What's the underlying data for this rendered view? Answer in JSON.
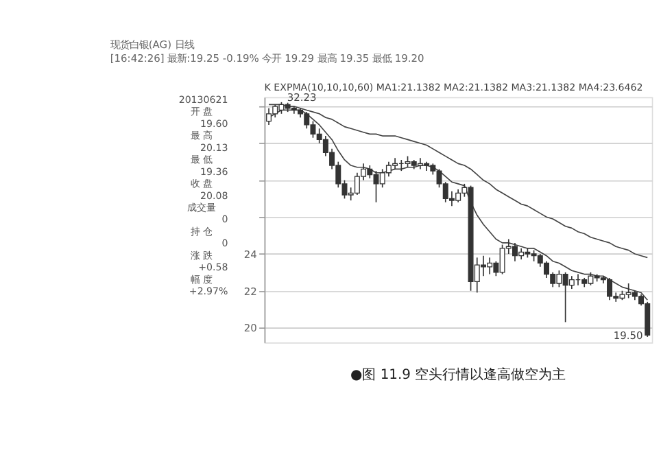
{
  "chart_data": {
    "type": "candlestick",
    "title": "现货白银(AG) 日线",
    "subtitle": "[16:42:26] 最新:19.25 -0.19% 今开 19.29 最高 19.35 最低 19.20",
    "color": "#333333",
    "categories": [
      null,
      null,
      null,
      null,
      null,
      null,
      null,
      null,
      null,
      null,
      null,
      null,
      null,
      null,
      null,
      null,
      null,
      null,
      null,
      null,
      null,
      null,
      null,
      null,
      null,
      null,
      null,
      null,
      null,
      null,
      null,
      null,
      null,
      null,
      null,
      null,
      null,
      null,
      null,
      null,
      null,
      null,
      null,
      null,
      null,
      null,
      null,
      null,
      null,
      null,
      null,
      null,
      null,
      null,
      null,
      null,
      null,
      null,
      null,
      null,
      null
    ],
    "ohlc": [
      [
        31.2,
        31.9,
        31.0,
        31.6
      ],
      [
        31.6,
        32.1,
        31.4,
        32.0
      ],
      [
        31.8,
        32.23,
        31.6,
        32.1
      ],
      [
        32.1,
        32.2,
        31.7,
        31.9
      ],
      [
        31.9,
        32.0,
        31.6,
        31.8
      ],
      [
        31.8,
        31.9,
        31.4,
        31.6
      ],
      [
        31.6,
        31.7,
        30.8,
        31.0
      ],
      [
        31.0,
        31.2,
        30.3,
        30.5
      ],
      [
        30.5,
        30.8,
        30.0,
        30.2
      ],
      [
        30.2,
        30.4,
        29.3,
        29.5
      ],
      [
        29.5,
        29.7,
        28.6,
        28.8
      ],
      [
        28.8,
        29.0,
        27.6,
        27.8
      ],
      [
        27.8,
        28.0,
        27.0,
        27.2
      ],
      [
        27.2,
        27.6,
        26.9,
        27.3
      ],
      [
        27.3,
        28.4,
        27.2,
        28.2
      ],
      [
        28.2,
        28.9,
        28.0,
        28.6
      ],
      [
        28.6,
        28.8,
        28.1,
        28.3
      ],
      [
        28.3,
        28.5,
        26.8,
        27.8
      ],
      [
        27.8,
        28.6,
        27.6,
        28.4
      ],
      [
        28.4,
        29.0,
        28.2,
        28.8
      ],
      [
        28.8,
        29.2,
        28.6,
        28.9
      ],
      [
        28.9,
        29.1,
        28.5,
        28.9
      ],
      [
        28.9,
        29.3,
        28.7,
        29.0
      ],
      [
        29.0,
        29.1,
        28.6,
        28.8
      ],
      [
        28.8,
        29.2,
        28.6,
        28.9
      ],
      [
        28.9,
        29.0,
        28.5,
        28.8
      ],
      [
        28.8,
        28.9,
        28.3,
        28.5
      ],
      [
        28.5,
        28.6,
        27.6,
        27.8
      ],
      [
        27.8,
        27.9,
        26.8,
        27.0
      ],
      [
        27.0,
        27.4,
        26.6,
        26.9
      ],
      [
        26.9,
        27.5,
        26.8,
        27.3
      ],
      [
        27.3,
        27.8,
        27.1,
        27.6
      ],
      [
        27.6,
        27.7,
        22.0,
        22.5
      ],
      [
        22.5,
        23.8,
        21.9,
        23.4
      ],
      [
        23.4,
        23.9,
        22.8,
        23.3
      ],
      [
        23.3,
        23.8,
        22.9,
        23.5
      ],
      [
        23.5,
        23.6,
        22.8,
        23.0
      ],
      [
        23.0,
        24.5,
        22.9,
        24.3
      ],
      [
        24.3,
        24.8,
        24.0,
        24.4
      ],
      [
        24.4,
        24.6,
        23.6,
        23.9
      ],
      [
        23.9,
        24.3,
        23.7,
        24.1
      ],
      [
        24.1,
        24.3,
        23.8,
        24.0
      ],
      [
        24.0,
        24.2,
        23.6,
        23.9
      ],
      [
        23.9,
        24.0,
        23.3,
        23.5
      ],
      [
        23.5,
        23.6,
        22.7,
        22.9
      ],
      [
        22.9,
        23.0,
        22.2,
        22.4
      ],
      [
        22.4,
        23.1,
        22.2,
        22.9
      ],
      [
        22.9,
        23.0,
        20.3,
        22.3
      ],
      [
        22.3,
        22.8,
        22.1,
        22.6
      ],
      [
        22.6,
        22.9,
        22.3,
        22.6
      ],
      [
        22.6,
        22.7,
        22.2,
        22.4
      ],
      [
        22.4,
        23.0,
        22.3,
        22.8
      ],
      [
        22.8,
        22.9,
        22.5,
        22.7
      ],
      [
        22.7,
        22.8,
        22.4,
        22.6
      ],
      [
        22.6,
        22.7,
        21.5,
        21.7
      ],
      [
        21.7,
        21.9,
        21.4,
        21.6
      ],
      [
        21.6,
        22.0,
        21.5,
        21.8
      ],
      [
        21.8,
        22.4,
        21.6,
        21.9
      ],
      [
        21.9,
        22.0,
        21.5,
        21.7
      ],
      [
        21.7,
        21.8,
        21.2,
        21.3
      ],
      [
        21.3,
        21.4,
        19.5,
        19.6
      ]
    ],
    "series": [
      {
        "type": "line",
        "color": "#444444",
        "values": [
          31.4,
          31.6,
          31.8,
          31.8,
          31.8,
          31.8,
          31.6,
          31.3,
          31.0,
          30.6,
          30.2,
          29.6,
          29.1,
          28.8,
          28.7,
          28.7,
          28.6,
          28.4,
          28.4,
          28.5,
          28.6,
          28.6,
          28.7,
          28.7,
          28.8,
          28.8,
          28.7,
          28.5,
          28.2,
          27.9,
          27.8,
          27.7,
          26.8,
          26.1,
          25.6,
          25.2,
          24.8,
          24.6,
          24.6,
          24.5,
          24.4,
          24.3,
          24.3,
          24.1,
          23.9,
          23.6,
          23.5,
          23.3,
          23.1,
          23.0,
          22.9,
          22.9,
          22.8,
          22.8,
          22.6,
          22.4,
          22.2,
          22.1,
          22.0,
          21.9,
          21.5
        ]
      },
      {
        "type": "line",
        "color": "#444444",
        "values": [
          32.1,
          32.1,
          32.1,
          32.0,
          32.0,
          31.9,
          31.8,
          31.7,
          31.6,
          31.4,
          31.3,
          31.1,
          30.9,
          30.8,
          30.7,
          30.6,
          30.5,
          30.5,
          30.4,
          30.4,
          30.4,
          30.3,
          30.2,
          30.1,
          30.0,
          29.9,
          29.7,
          29.5,
          29.3,
          29.1,
          28.9,
          28.8,
          28.6,
          28.3,
          28.0,
          27.8,
          27.5,
          27.3,
          27.1,
          26.9,
          26.7,
          26.6,
          26.4,
          26.2,
          26.0,
          25.9,
          25.7,
          25.5,
          25.4,
          25.2,
          25.1,
          24.9,
          24.8,
          24.7,
          24.6,
          24.4,
          24.3,
          24.2,
          24.0,
          23.9,
          23.8
        ]
      }
    ],
    "ylim": [
      19.2,
      32.5
    ],
    "yticks": [
      20,
      22,
      24,
      {
        "value": 26,
        "label": null
      },
      {
        "value": 28,
        "label": null
      },
      {
        "value": 30,
        "label": null
      },
      {
        "value": 32,
        "label": null
      }
    ],
    "grid": "y",
    "tick_labels": "y",
    "annotations": [
      "20130621",
      "开 盘",
      "19.60",
      "最 高",
      "20.13",
      "最 低",
      "19.36",
      "收 盘",
      "20.08",
      "成交量",
      "0",
      "持 仓",
      "0",
      "涨 跌",
      "+0.58",
      "幅 度",
      "+2.97%",
      {
        "text": "32.23",
        "y": 32.23
      },
      "19.50",
      "K EXPMA(10,10,10,60) MA1:21.1382 MA2:21.1382 MA3:21.1382 MA4:23.6462",
      "●图 11.9  空头行情以逢高做空为主"
    ]
  }
}
